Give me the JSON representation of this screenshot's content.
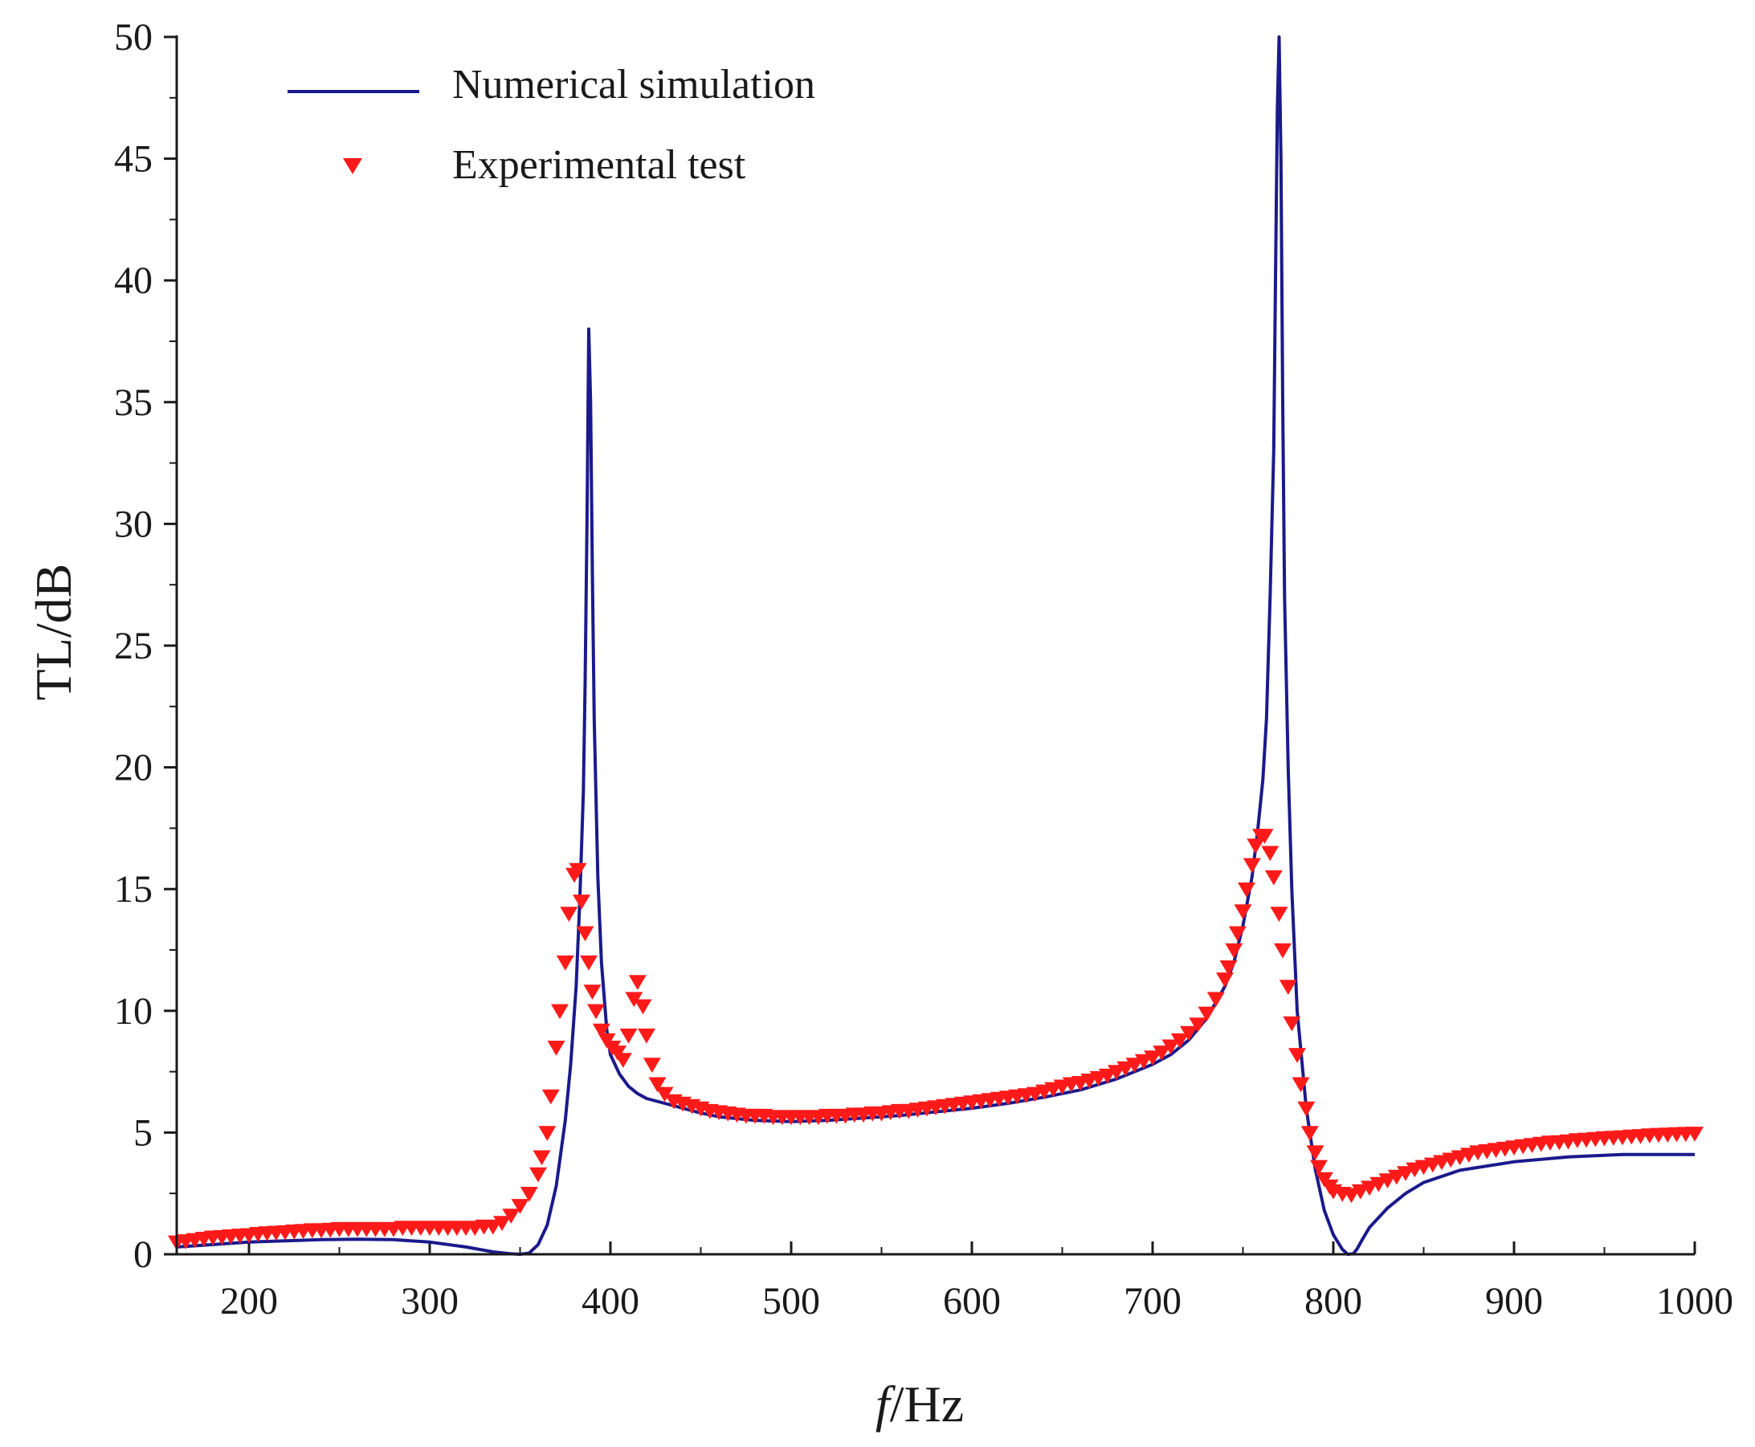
{
  "chart_data": {
    "type": "line",
    "title": "",
    "xlabel_italic": "f",
    "xlabel_rest": "/Hz",
    "ylabel": "TL/dB",
    "xlim": [
      160,
      1000
    ],
    "ylim": [
      0,
      50
    ],
    "xticks": [
      200,
      300,
      400,
      500,
      600,
      700,
      800,
      900,
      1000
    ],
    "yticks": [
      0,
      5,
      10,
      15,
      20,
      25,
      30,
      35,
      40,
      45,
      50
    ],
    "legend_position": "top-left",
    "colors": {
      "simulation": "#1a1a8c",
      "experiment": "#ff1a1a",
      "axis": "#1a1a1a"
    },
    "series": [
      {
        "name": "Numerical simulation",
        "style": "line",
        "x": [
          160,
          180,
          200,
          220,
          240,
          260,
          280,
          300,
          320,
          335,
          345,
          350,
          355,
          360,
          365,
          370,
          375,
          378,
          381,
          383,
          385,
          386,
          387,
          388,
          389,
          390,
          391,
          393,
          395,
          398,
          400,
          405,
          410,
          415,
          420,
          425,
          430,
          440,
          450,
          460,
          480,
          500,
          520,
          540,
          560,
          580,
          600,
          620,
          640,
          660,
          680,
          700,
          710,
          720,
          730,
          740,
          745,
          750,
          755,
          758,
          761,
          763,
          765,
          767,
          768,
          769,
          770,
          771,
          772,
          773,
          775,
          777,
          780,
          785,
          790,
          795,
          800,
          805,
          808,
          811,
          813,
          816,
          820,
          830,
          840,
          850,
          870,
          900,
          930,
          960,
          1000
        ],
        "values": [
          0.3,
          0.4,
          0.5,
          0.55,
          0.6,
          0.62,
          0.6,
          0.5,
          0.3,
          0.1,
          0.02,
          0,
          0.05,
          0.4,
          1.2,
          2.8,
          5.5,
          7.8,
          11,
          14.5,
          19,
          23.5,
          30,
          38,
          35,
          28,
          22,
          15.5,
          12,
          9.2,
          8.2,
          7.4,
          6.9,
          6.6,
          6.4,
          6.3,
          6.2,
          6,
          5.8,
          5.65,
          5.5,
          5.45,
          5.5,
          5.6,
          5.7,
          5.85,
          6,
          6.2,
          6.45,
          6.75,
          7.2,
          7.8,
          8.2,
          8.8,
          9.7,
          11,
          12,
          13.5,
          15.5,
          17.3,
          19.5,
          22,
          27,
          33,
          40,
          47,
          50,
          45,
          35,
          27,
          20,
          15,
          10,
          6,
          3.5,
          1.8,
          0.8,
          0.2,
          0,
          0.02,
          0.2,
          0.6,
          1.1,
          1.9,
          2.5,
          2.95,
          3.45,
          3.8,
          4,
          4.1,
          4.1
        ]
      },
      {
        "name": "Experimental test",
        "style": "marker",
        "marker": "triangle-down",
        "x": [
          160,
          165,
          170,
          175,
          180,
          185,
          190,
          195,
          200,
          205,
          210,
          215,
          220,
          225,
          230,
          235,
          240,
          245,
          250,
          255,
          260,
          265,
          270,
          275,
          280,
          285,
          290,
          295,
          300,
          305,
          310,
          315,
          320,
          325,
          330,
          335,
          340,
          345,
          350,
          355,
          360,
          362,
          365,
          367,
          370,
          372,
          375,
          377,
          380,
          382,
          384,
          386,
          388,
          390,
          392,
          395,
          398,
          401,
          404,
          407,
          410,
          413,
          415,
          418,
          420,
          423,
          426,
          430,
          435,
          440,
          445,
          450,
          455,
          460,
          465,
          470,
          475,
          480,
          485,
          490,
          495,
          500,
          505,
          510,
          515,
          520,
          525,
          530,
          535,
          540,
          545,
          550,
          555,
          560,
          565,
          570,
          575,
          580,
          585,
          590,
          595,
          600,
          605,
          610,
          615,
          620,
          625,
          630,
          635,
          640,
          645,
          650,
          655,
          660,
          665,
          670,
          675,
          680,
          685,
          690,
          695,
          700,
          705,
          710,
          715,
          720,
          725,
          730,
          735,
          740,
          742,
          745,
          747,
          750,
          752,
          755,
          757,
          760,
          762,
          765,
          767,
          770,
          772,
          775,
          777,
          780,
          782,
          785,
          787,
          790,
          792,
          795,
          798,
          800,
          805,
          810,
          815,
          820,
          825,
          830,
          835,
          840,
          845,
          850,
          855,
          860,
          865,
          870,
          875,
          880,
          885,
          890,
          895,
          900,
          905,
          910,
          915,
          920,
          925,
          930,
          935,
          940,
          945,
          950,
          955,
          960,
          965,
          970,
          975,
          980,
          985,
          990,
          995,
          1000
        ],
        "values": [
          0.5,
          0.55,
          0.6,
          0.65,
          0.7,
          0.72,
          0.75,
          0.78,
          0.8,
          0.85,
          0.88,
          0.9,
          0.92,
          0.95,
          0.97,
          1,
          1,
          1.02,
          1.05,
          1.05,
          1.05,
          1.05,
          1.05,
          1.05,
          1.05,
          1.1,
          1.1,
          1.1,
          1.1,
          1.1,
          1.1,
          1.1,
          1.1,
          1.1,
          1.15,
          1.15,
          1.3,
          1.6,
          2,
          2.5,
          3.3,
          4,
          5,
          6.5,
          8.5,
          10,
          12,
          14,
          15.6,
          15.8,
          14.5,
          13.2,
          12,
          10.8,
          10,
          9.2,
          8.8,
          8.5,
          8.3,
          8,
          9,
          10.5,
          11.2,
          10.2,
          9,
          7.8,
          7,
          6.6,
          6.3,
          6.2,
          6.1,
          6,
          5.9,
          5.85,
          5.8,
          5.75,
          5.7,
          5.7,
          5.7,
          5.65,
          5.65,
          5.65,
          5.65,
          5.65,
          5.65,
          5.7,
          5.7,
          5.7,
          5.75,
          5.75,
          5.8,
          5.8,
          5.85,
          5.9,
          5.9,
          5.95,
          6,
          6.05,
          6.1,
          6.15,
          6.2,
          6.25,
          6.3,
          6.35,
          6.4,
          6.45,
          6.5,
          6.55,
          6.6,
          6.7,
          6.8,
          6.9,
          7,
          7.05,
          7.15,
          7.25,
          7.35,
          7.5,
          7.65,
          7.8,
          7.95,
          8.1,
          8.3,
          8.55,
          8.8,
          9.1,
          9.45,
          9.9,
          10.5,
          11.3,
          11.8,
          12.5,
          13.2,
          14.1,
          15,
          16,
          16.8,
          17.2,
          17.2,
          16.5,
          15.5,
          14,
          12.5,
          11,
          9.5,
          8.2,
          7,
          6,
          5,
          4.2,
          3.6,
          3.1,
          2.8,
          2.6,
          2.5,
          2.45,
          2.6,
          2.75,
          2.9,
          3.05,
          3.2,
          3.35,
          3.5,
          3.6,
          3.7,
          3.8,
          3.9,
          4,
          4.1,
          4.2,
          4.25,
          4.3,
          4.35,
          4.4,
          4.45,
          4.5,
          4.55,
          4.6,
          4.62,
          4.65,
          4.7,
          4.72,
          4.75,
          4.78,
          4.8,
          4.82,
          4.85,
          4.87,
          4.9,
          4.92,
          4.93,
          4.95,
          4.96,
          4.97
        ]
      }
    ]
  }
}
